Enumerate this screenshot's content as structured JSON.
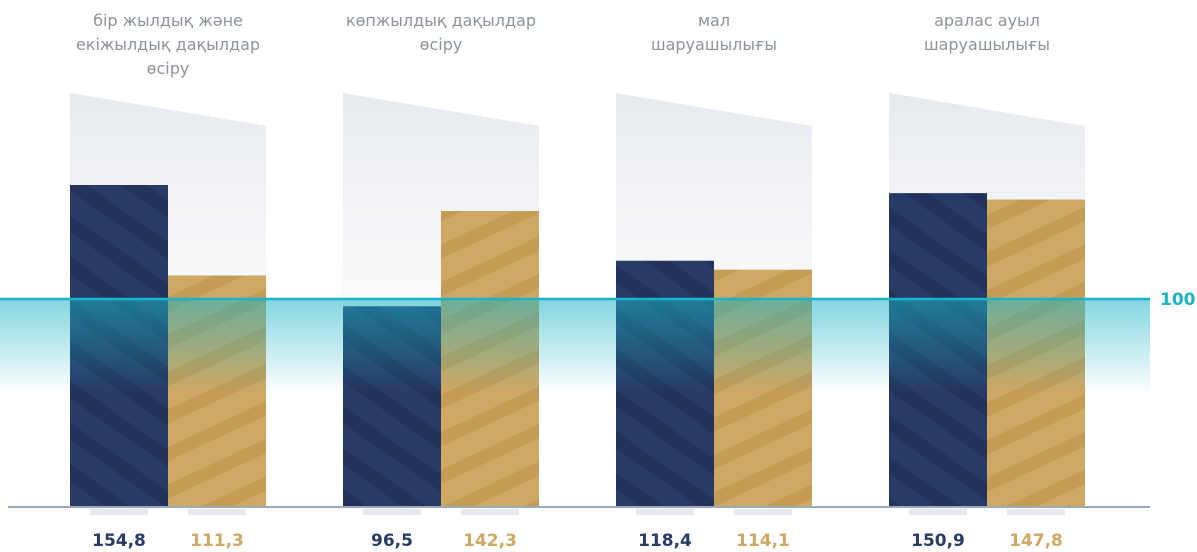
{
  "colors": {
    "series_1": "#283a66",
    "series_2": "#cfa863",
    "reference": "#1bb3c6",
    "baseline": "#9aa9bc",
    "category_text": "#8d939c",
    "panel": "#e6e9ee"
  },
  "chart_data": {
    "type": "bar",
    "categories": [
      [
        "бір жылдық және",
        "екіжылдық дақылдар",
        "өсіру"
      ],
      [
        "көпжылдық дақылдар",
        "өсіру"
      ],
      [
        "мал",
        "шаруашылығы"
      ],
      [
        "аралас ауыл",
        "шаруашылығы"
      ]
    ],
    "series": [
      {
        "values": [
          154.8,
          96.5,
          118.4,
          150.9
        ]
      },
      {
        "values": [
          111.3,
          142.3,
          114.1,
          147.8
        ]
      }
    ],
    "value_labels": [
      [
        "154,8",
        "96,5",
        "118,4",
        "150,9"
      ],
      [
        "111,3",
        "142,3",
        "114,1",
        "147,8"
      ]
    ],
    "reference_line": {
      "value": 100,
      "label": "100"
    },
    "ylim": [
      0,
      200
    ],
    "grid": false,
    "legend": "none"
  }
}
